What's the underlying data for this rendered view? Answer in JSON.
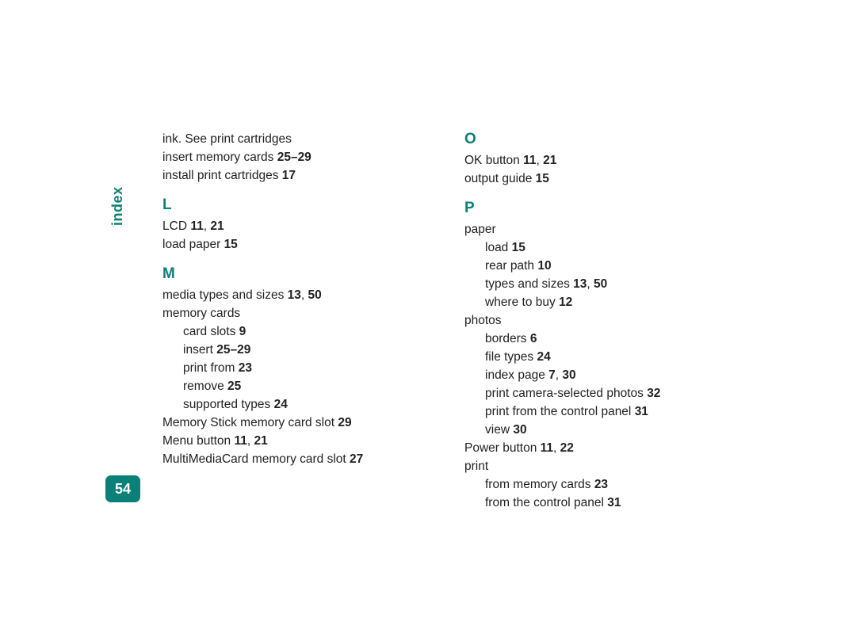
{
  "accent_color": "#0a8078",
  "side_label": "index",
  "page_number": "54",
  "columns": [
    [
      {
        "type": "entry",
        "text": "ink. See print cartridges"
      },
      {
        "type": "entry",
        "text": "insert memory cards ",
        "refs": "25–29"
      },
      {
        "type": "entry",
        "text": "install print cartridges ",
        "refs": "17"
      },
      {
        "type": "letter",
        "text": "L"
      },
      {
        "type": "entry",
        "text": "LCD ",
        "refs": "11, 21"
      },
      {
        "type": "entry",
        "text": "load paper ",
        "refs": "15"
      },
      {
        "type": "letter",
        "text": "M"
      },
      {
        "type": "entry",
        "text": "media types and sizes ",
        "refs": "13, 50"
      },
      {
        "type": "entry",
        "text": "memory cards"
      },
      {
        "type": "sub",
        "text": "card slots ",
        "refs": "9"
      },
      {
        "type": "sub",
        "text": "insert ",
        "refs": "25–29"
      },
      {
        "type": "sub",
        "text": "print from ",
        "refs": "23"
      },
      {
        "type": "sub",
        "text": "remove ",
        "refs": "25"
      },
      {
        "type": "sub",
        "text": "supported types ",
        "refs": "24"
      },
      {
        "type": "entry",
        "text": "Memory Stick memory card slot ",
        "refs": "29"
      },
      {
        "type": "entry",
        "text": "Menu button ",
        "refs": "11, 21"
      },
      {
        "type": "entry",
        "text": "MultiMediaCard memory card slot ",
        "refs": "27"
      }
    ],
    [
      {
        "type": "letter-first",
        "text": "O"
      },
      {
        "type": "entry",
        "text": "OK button ",
        "refs": "11, 21"
      },
      {
        "type": "entry",
        "text": "output guide ",
        "refs": "15"
      },
      {
        "type": "letter",
        "text": "P"
      },
      {
        "type": "entry",
        "text": "paper"
      },
      {
        "type": "sub",
        "text": "load ",
        "refs": "15"
      },
      {
        "type": "sub",
        "text": "rear path ",
        "refs": "10"
      },
      {
        "type": "sub",
        "text": "types and sizes ",
        "refs": "13, 50"
      },
      {
        "type": "sub",
        "text": "where to buy ",
        "refs": "12"
      },
      {
        "type": "entry",
        "text": "photos"
      },
      {
        "type": "sub",
        "text": "borders ",
        "refs": "6"
      },
      {
        "type": "sub",
        "text": "file types ",
        "refs": "24"
      },
      {
        "type": "sub",
        "text": "index page ",
        "refs": "7, 30"
      },
      {
        "type": "sub",
        "text": "print camera-selected photos ",
        "refs": "32"
      },
      {
        "type": "sub",
        "text": "print from the control panel ",
        "refs": "31"
      },
      {
        "type": "sub",
        "text": "view ",
        "refs": "30"
      },
      {
        "type": "entry",
        "text": "Power button ",
        "refs": "11, 22"
      },
      {
        "type": "entry",
        "text": "print"
      },
      {
        "type": "sub",
        "text": "from memory cards ",
        "refs": "23"
      },
      {
        "type": "sub",
        "text": "from the control panel ",
        "refs": "31"
      }
    ]
  ]
}
